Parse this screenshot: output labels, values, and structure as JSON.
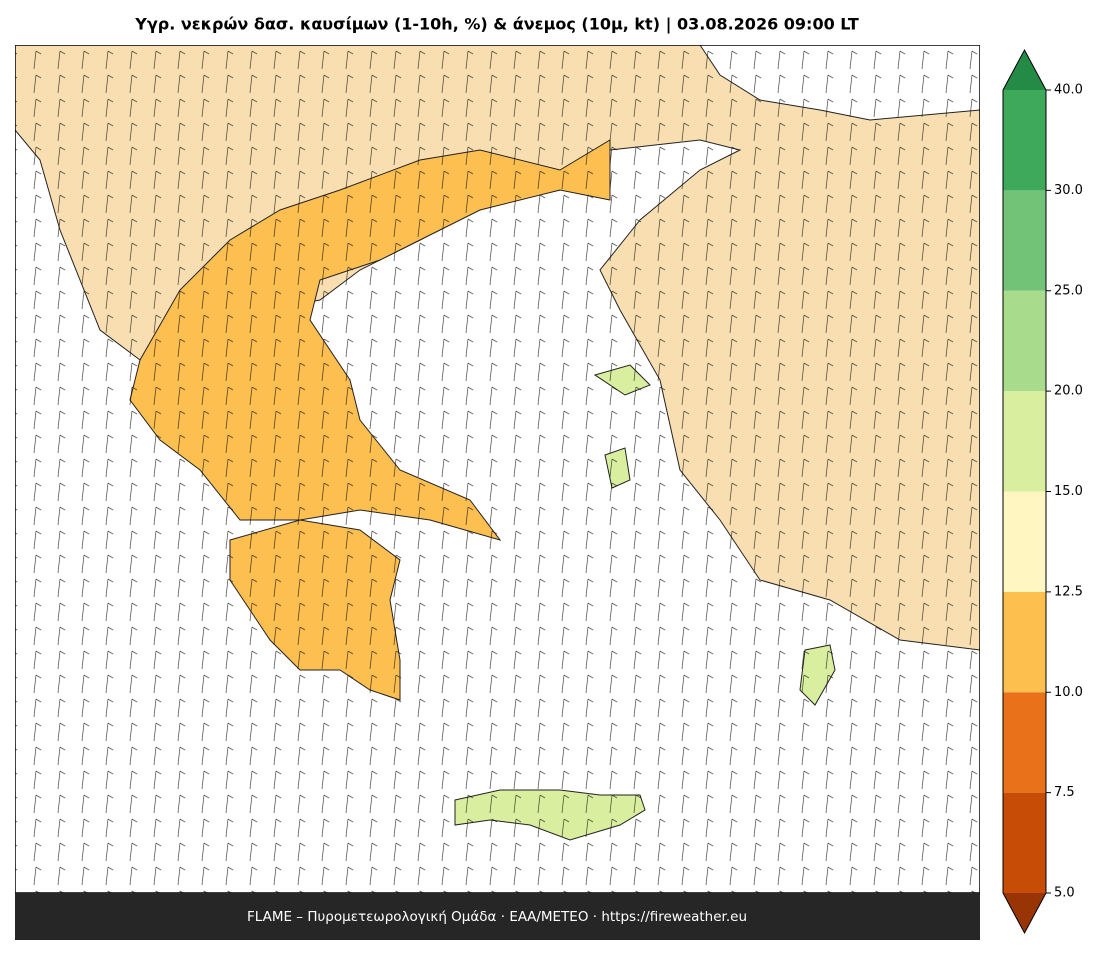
{
  "header": {
    "title": "Υγρ. νεκρών δασ. καυσίμων (1-10h, %) & άνεμος (10μ, kt)  |  03.08.2026 09:00 LT"
  },
  "footer": {
    "text": "FLAME – Πυρομετεωρολογική Ομάδα · ΕΑΑ/METEO · https://fireweather.eu"
  },
  "colorbar": {
    "levels": [
      {
        "value": 5,
        "label": "5.0"
      },
      {
        "value": 7.5,
        "label": "7.5"
      },
      {
        "value": 10,
        "label": "10.0"
      },
      {
        "value": 12.5,
        "label": "12.5"
      },
      {
        "value": 15,
        "label": "15.0"
      },
      {
        "value": 20,
        "label": "20.0"
      },
      {
        "value": 25,
        "label": "25.0"
      },
      {
        "value": 30,
        "label": "30.0"
      },
      {
        "value": 40,
        "label": "40.0"
      }
    ],
    "colors": [
      "#c74c05",
      "#e8711a",
      "#fdc04f",
      "#fff6c1",
      "#d9ef9f",
      "#a8dc8c",
      "#72c277",
      "#3ea95a"
    ],
    "under_color": "#993404",
    "over_color": "#238b45"
  }
}
